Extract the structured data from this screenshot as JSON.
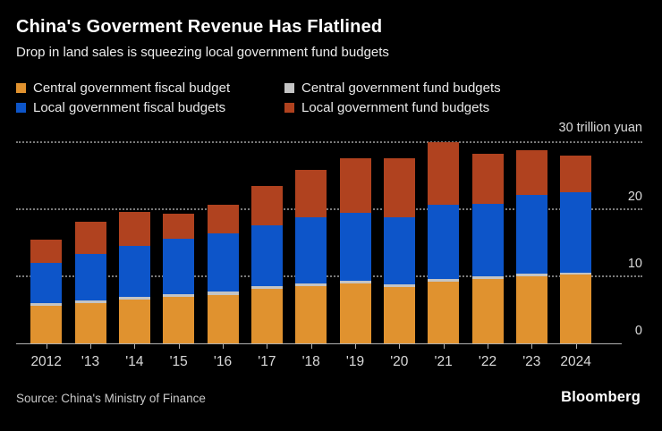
{
  "header": {
    "title": "China's Goverment Revenue Has Flatlined",
    "subtitle": "Drop in land sales is squeezing local government fund budgets"
  },
  "legend": {
    "items": [
      {
        "label": "Central government fiscal budget",
        "color": "#E0922F"
      },
      {
        "label": "Central government fund budgets",
        "color": "#C4C4C4"
      },
      {
        "label": "Local government fiscal budgets",
        "color": "#0D55C9"
      },
      {
        "label": "Local government fund budgets",
        "color": "#B0421F"
      }
    ]
  },
  "axis": {
    "unit_label": "30 trillion yuan",
    "unit_value": 30,
    "y_ticks": [
      {
        "value": 20,
        "label": "20"
      },
      {
        "value": 10,
        "label": "10"
      },
      {
        "value": 0,
        "label": "0"
      }
    ]
  },
  "chart_data": {
    "type": "bar",
    "stacked": true,
    "title": "China's Goverment Revenue Has Flatlined",
    "subtitle": "Drop in land sales is squeezing local government fund budgets",
    "unit": "trillion yuan",
    "ylim": [
      0,
      30
    ],
    "gridlines": [
      10,
      20,
      30
    ],
    "grid_style": "dotted",
    "legend_position": "top",
    "categories": [
      "2012",
      "'13",
      "'14",
      "'15",
      "'16",
      "'17",
      "'18",
      "'19",
      "'20",
      "'21",
      "'22",
      "'23",
      "2024"
    ],
    "series": [
      {
        "name": "Central government fiscal budget",
        "color": "#E0922F",
        "values": [
          5.6,
          6.0,
          6.5,
          6.9,
          7.2,
          8.1,
          8.5,
          8.9,
          8.3,
          9.1,
          9.5,
          10.0,
          10.2
        ]
      },
      {
        "name": "Central government fund budgets",
        "color": "#C4C4C4",
        "values": [
          0.3,
          0.4,
          0.4,
          0.4,
          0.5,
          0.4,
          0.4,
          0.4,
          0.4,
          0.4,
          0.4,
          0.4,
          0.3
        ]
      },
      {
        "name": "Local government fiscal budgets",
        "color": "#0D55C9",
        "values": [
          6.1,
          6.9,
          7.6,
          8.2,
          8.7,
          9.1,
          9.8,
          10.1,
          10.0,
          11.1,
          10.9,
          11.7,
          12.0
        ]
      },
      {
        "name": "Local government fund budgets",
        "color": "#B0421F",
        "values": [
          3.4,
          4.8,
          5.0,
          3.8,
          4.2,
          5.8,
          7.1,
          8.1,
          8.9,
          9.4,
          7.4,
          6.6,
          5.5
        ]
      }
    ],
    "totals": [
      15.4,
      18.1,
      19.5,
      19.3,
      20.6,
      23.4,
      25.8,
      27.5,
      27.6,
      30.0,
      28.2,
      28.7,
      28.0
    ]
  },
  "footer": {
    "source": "Source: China's Ministry of Finance",
    "brand": "Bloomberg"
  }
}
